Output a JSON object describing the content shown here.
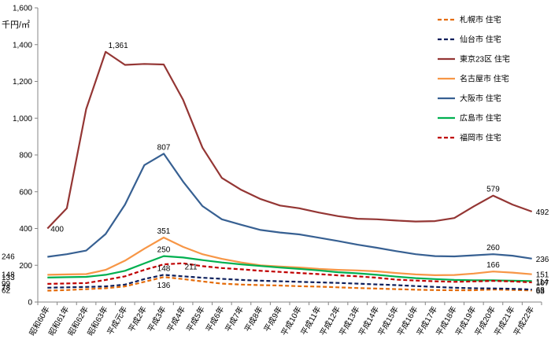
{
  "chart_data": {
    "type": "line",
    "ylabel": "千円/㎡",
    "ylim": [
      0,
      1600
    ],
    "yticks": [
      0,
      200,
      400,
      600,
      800,
      1000,
      1200,
      1400,
      1600
    ],
    "ytick_labels": [
      "0",
      "200",
      "400",
      "600",
      "800",
      "1,000",
      "1,200",
      "1,400",
      "1,600"
    ],
    "grid": false,
    "legend_position": "right",
    "categories": [
      "昭和60年",
      "昭和61年",
      "昭和62年",
      "昭和63年",
      "平成元年",
      "平成2年",
      "平成3年",
      "平成4年",
      "平成5年",
      "平成6年",
      "平成7年",
      "平成8年",
      "平成9年",
      "平成10年",
      "平成11年",
      "平成12年",
      "平成13年",
      "平成14年",
      "平成15年",
      "平成16年",
      "平成17年",
      "平成18年",
      "平成19年",
      "平成20年",
      "平成21年",
      "平成22年"
    ],
    "series": [
      {
        "name": "札幌市 住宅",
        "color": "#E46C0A",
        "dash": "dashed",
        "values": [
          62,
          65,
          70,
          75,
          85,
          110,
          136,
          125,
          112,
          100,
          95,
          92,
          90,
          86,
          84,
          80,
          76,
          73,
          70,
          67,
          65,
          64,
          64,
          68,
          66,
          63
        ],
        "labels": [
          {
            "i": 0,
            "text": "62"
          },
          {
            "i": 6,
            "text": "136"
          },
          {
            "i": 25,
            "text": "63"
          }
        ]
      },
      {
        "name": "仙台市 住宅",
        "color": "#0D1F5C",
        "dash": "dashed",
        "values": [
          78,
          80,
          82,
          85,
          95,
          125,
          148,
          140,
          132,
          126,
          120,
          116,
          113,
          110,
          107,
          104,
          100,
          96,
          92,
          87,
          82,
          78,
          75,
          74,
          72,
          68
        ],
        "labels": [
          {
            "i": 0,
            "text": "78"
          },
          {
            "i": 6,
            "text": "148"
          },
          {
            "i": 25,
            "text": "68"
          }
        ]
      },
      {
        "name": "東京23区 住宅",
        "color": "#943634",
        "dash": "solid",
        "values": [
          400,
          510,
          1050,
          1361,
          1290,
          1295,
          1292,
          1100,
          840,
          675,
          610,
          560,
          525,
          510,
          487,
          467,
          453,
          450,
          443,
          438,
          440,
          457,
          520,
          579,
          530,
          492
        ],
        "labels": [
          {
            "i": 0,
            "text": "400"
          },
          {
            "i": 3,
            "text": "1,361"
          },
          {
            "i": 23,
            "text": "579"
          },
          {
            "i": 25,
            "text": "492"
          }
        ]
      },
      {
        "name": "名古屋市 住宅",
        "color": "#F79646",
        "dash": "solid",
        "values": [
          148,
          150,
          152,
          175,
          225,
          290,
          351,
          300,
          260,
          235,
          215,
          200,
          193,
          188,
          180,
          175,
          172,
          167,
          158,
          150,
          146,
          147,
          155,
          166,
          160,
          151
        ],
        "labels": [
          {
            "i": 0,
            "text": "148"
          },
          {
            "i": 6,
            "text": "351"
          },
          {
            "i": 23,
            "text": "166"
          },
          {
            "i": 25,
            "text": "151"
          }
        ]
      },
      {
        "name": "大阪市 住宅",
        "color": "#376092",
        "dash": "solid",
        "values": [
          246,
          260,
          280,
          370,
          530,
          745,
          807,
          655,
          522,
          450,
          420,
          392,
          378,
          368,
          350,
          332,
          312,
          295,
          277,
          260,
          250,
          248,
          254,
          260,
          252,
          236
        ],
        "labels": [
          {
            "i": 0,
            "text": "246"
          },
          {
            "i": 6,
            "text": "807"
          },
          {
            "i": 23,
            "text": "260"
          },
          {
            "i": 25,
            "text": "236"
          }
        ]
      },
      {
        "name": "広島市 住宅",
        "color": "#00B050",
        "dash": "solid",
        "values": [
          133,
          135,
          137,
          148,
          170,
          210,
          250,
          242,
          228,
          215,
          205,
          196,
          188,
          180,
          172,
          162,
          156,
          148,
          138,
          130,
          125,
          120,
          118,
          118,
          116,
          114
        ],
        "labels": [
          {
            "i": 0,
            "text": "133"
          },
          {
            "i": 6,
            "text": "250"
          },
          {
            "i": 25,
            "text": "114"
          }
        ]
      },
      {
        "name": "福岡市 住宅",
        "color": "#C00000",
        "dash": "dashed",
        "values": [
          99,
          101,
          103,
          120,
          140,
          175,
          205,
          211,
          195,
          185,
          178,
          170,
          164,
          158,
          152,
          145,
          140,
          132,
          122,
          117,
          113,
          110,
          112,
          115,
          112,
          107
        ],
        "labels": [
          {
            "i": 0,
            "text": "99"
          },
          {
            "i": 7,
            "text": "211"
          },
          {
            "i": 25,
            "text": "107"
          }
        ]
      }
    ]
  }
}
